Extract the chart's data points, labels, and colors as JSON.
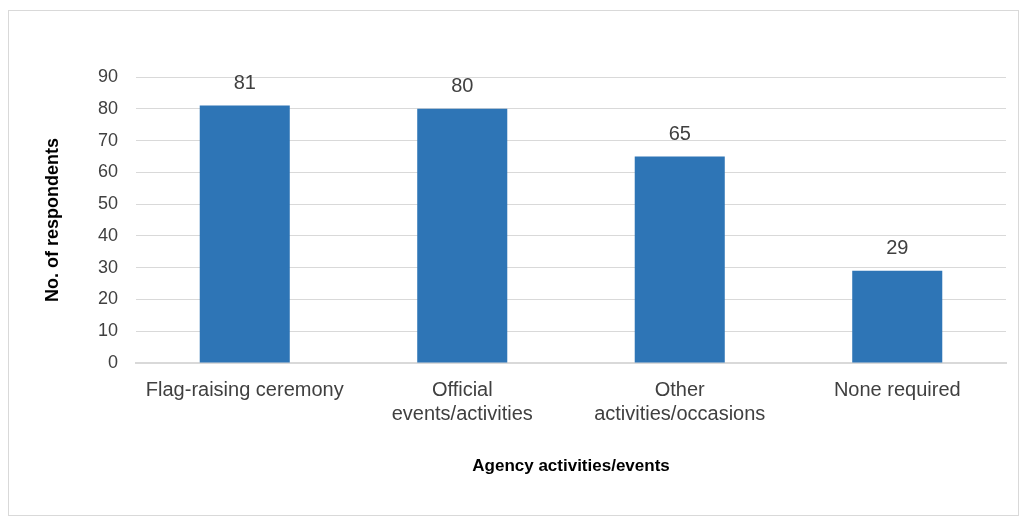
{
  "chart_data": {
    "type": "bar",
    "xlabel": "Agency activities/events",
    "ylabel": "No. of respondents",
    "categories": [
      "Flag-raising ceremony",
      "Official events/activities",
      "Other activities/occasions",
      "None required"
    ],
    "values": [
      81,
      80,
      65,
      29
    ],
    "color": "#2e75b6",
    "ylim": [
      0,
      90
    ],
    "yticks": [
      0,
      10,
      20,
      30,
      40,
      50,
      60,
      70,
      80,
      90
    ],
    "grid": "y",
    "data_labels": true
  }
}
